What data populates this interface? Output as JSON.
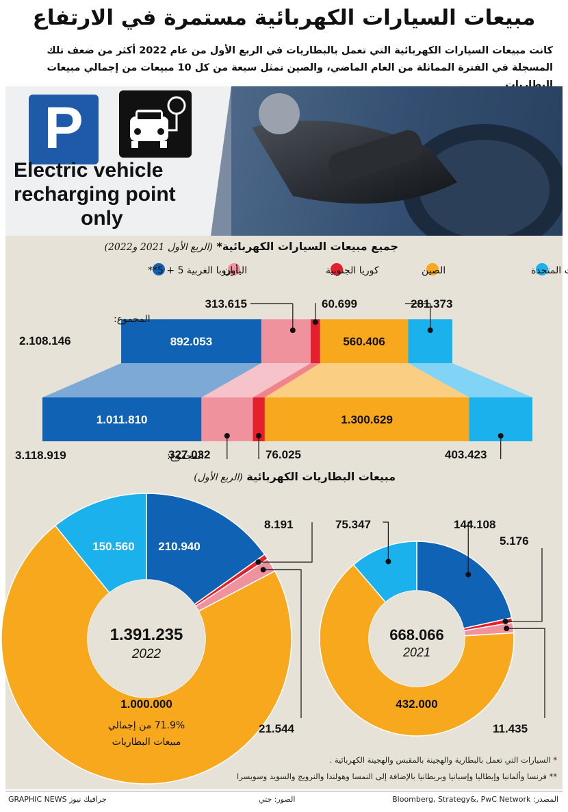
{
  "title": "مبيعات السيارات الكهربائية مستمرة في الارتفاع",
  "subtitle": "كانت مبيعات السيارات الكهربائية التي تعمل بالبطاريات في الربع الأول من عام 2022 أكثر من ضعف تلك المسجلة في الفترة المماثلة من العام الماضي، والصين تمثل سبعة من كل 10 مبيعات من إجمالي مبيعات البطاريات",
  "photo": {
    "sign_lines": [
      "Electric vehicle",
      "recharging point",
      "only"
    ],
    "parking_letter": "P"
  },
  "colors": {
    "usa": "#1ab1ec",
    "china": "#f8a81d",
    "korea": "#e4202c",
    "japan": "#f0919e",
    "europe": "#1063b4",
    "panel": "#e7e2d7"
  },
  "chart_data": [
    {
      "type": "bar",
      "title": "جميع مبيعات السيارات الكهربائية*",
      "subtitle": "(الربع الأول 2021 و2022)",
      "legend": [
        {
          "key": "usa",
          "label": "الولايات المتحدة"
        },
        {
          "key": "china",
          "label": "الصين"
        },
        {
          "key": "korea",
          "label": "كوريا الجنوبية"
        },
        {
          "key": "japan",
          "label": "اليابان"
        },
        {
          "key": "europe",
          "label": "أوروبا الغربية 5 + 5**"
        }
      ],
      "total_label": "المجموع:",
      "series": [
        {
          "year": 2021,
          "total": "2.108.146",
          "values": {
            "usa": 281373,
            "china": 560406,
            "korea": 60699,
            "japan": 313615,
            "europe": 892053
          },
          "labels": {
            "usa": "281.373",
            "china": "560.406",
            "korea": "60.699",
            "japan": "313.615",
            "europe": "892.053"
          }
        },
        {
          "year": 2022,
          "total": "3.118.919",
          "values": {
            "usa": 403423,
            "china": 1300629,
            "korea": 76025,
            "japan": 327032,
            "europe": 1011810
          },
          "labels": {
            "usa": "403.423",
            "china": "1.300.629",
            "korea": "76.025",
            "japan": "327.032",
            "europe": "1.011.810"
          }
        }
      ]
    },
    {
      "type": "pie",
      "title": "مبيعات البطاريات الكهربائية",
      "subtitle": "(الربع الأول)",
      "donuts": [
        {
          "year": "2022",
          "total": "1.391.235",
          "values": {
            "europe": 210940,
            "korea": 8191,
            "japan": 21544,
            "china": 1000000,
            "usa": 150560
          },
          "labels": {
            "europe": "210.940",
            "korea": "8.191",
            "japan": "21.544",
            "china": "1.000.000",
            "usa": "150.560"
          },
          "note_lines": [
            "71.9% من إجمالي",
            "مبيعات البطاريات"
          ]
        },
        {
          "year": "2021",
          "total": "668.066",
          "values": {
            "europe": 144108,
            "korea": 5176,
            "japan": 11435,
            "china": 432000,
            "usa": 75347
          },
          "labels": {
            "europe": "144.108",
            "korea": "5.176",
            "japan": "11.435",
            "china": "432.000",
            "usa": "75.347"
          }
        }
      ]
    }
  ],
  "footnotes": [
    "* السيارات التي تعمل بالبطارية والهجينة بالمقبس والهجينة الكهربائية .",
    "** فرنسا وألمانيا وإيطاليا وإسبانيا وبريطانيا بالإضافة إلى النمسا وهولندا والنرويج والسويد وسويسرا"
  ],
  "credits": {
    "source": "المصدر: Bloomberg, Strategy&, PwC Network",
    "photos": "الصور: جتي",
    "brand": "GRAPHIC NEWS جرافيك نيوز"
  }
}
